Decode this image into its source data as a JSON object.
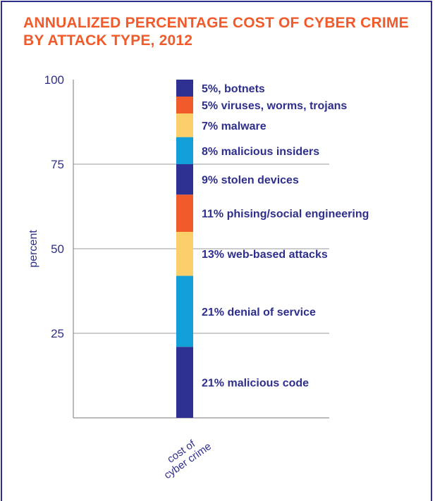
{
  "chart_data": {
    "type": "bar",
    "stacked": true,
    "title_line1": "ANNUALIZED PERCENTAGE COST OF CYBER CRIME",
    "title_line2": "BY ATTACK TYPE, 2012",
    "ylabel": "percent",
    "ylim": [
      0,
      100
    ],
    "yticks": [
      25,
      50,
      75,
      100
    ],
    "grid": true,
    "categories": [
      "cost of cyber crime"
    ],
    "category_label_lines": [
      "cost of",
      "cyber crime"
    ],
    "series": [
      {
        "name": "malicious code",
        "label": "21% malicious code",
        "value": 21,
        "color": "#2e3192"
      },
      {
        "name": "denial of service",
        "label": "21% denial of service",
        "value": 21,
        "color": "#129fd8"
      },
      {
        "name": "web-based attacks",
        "label": "13% web-based attacks",
        "value": 13,
        "color": "#fdcf6a"
      },
      {
        "name": "phising/social engineering",
        "label": "11% phising/social engineering",
        "value": 11,
        "color": "#f15a2b"
      },
      {
        "name": "stolen devices",
        "label": "9% stolen devices",
        "value": 9,
        "color": "#2e3192"
      },
      {
        "name": "malicious insiders",
        "label": "8% malicious insiders",
        "value": 8,
        "color": "#129fd8"
      },
      {
        "name": "malware",
        "label": "7% malware",
        "value": 7,
        "color": "#fdcf6a"
      },
      {
        "name": "viruses, worms, trojans",
        "label": "5% viruses, worms, trojans",
        "value": 5,
        "color": "#f15a2b"
      },
      {
        "name": "botnets",
        "label": "5%, botnets",
        "value": 5,
        "color": "#2e3192"
      }
    ],
    "colors": {
      "title": "#f15a2b",
      "text": "#2e2e8c",
      "grid": "#999999",
      "frame": "#2e2e8c"
    }
  }
}
